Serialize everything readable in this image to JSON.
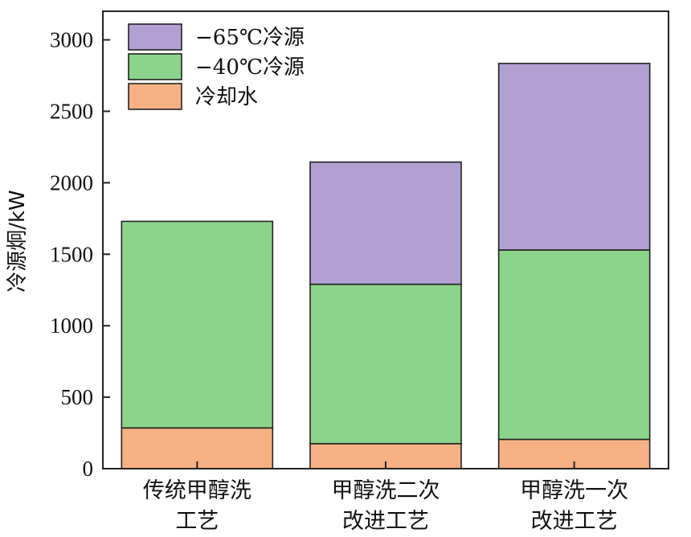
{
  "chart_data": {
    "type": "bar",
    "stacked": true,
    "categories": [
      [
        "传统甲醇洗",
        "工艺"
      ],
      [
        "甲醇洗二次",
        "改进工艺"
      ],
      [
        "甲醇洗一次",
        "改进工艺"
      ]
    ],
    "series": [
      {
        "name": "冷却水",
        "color": "#F5B183",
        "values": [
          285,
          175,
          205
        ]
      },
      {
        "name": "−40℃冷源",
        "color": "#8CD48C",
        "values": [
          1445,
          1115,
          1325
        ]
      },
      {
        "name": "−65℃冷源",
        "color": "#B3A0D2",
        "values": [
          0,
          855,
          1305
        ]
      }
    ],
    "legend_order": [
      2,
      1,
      0
    ],
    "legend_position": "top-left",
    "ylabel": "冷源炯/kW",
    "xlabel": "",
    "title": "",
    "ylim": [
      0,
      3200
    ],
    "yticks": [
      0,
      500,
      1000,
      1500,
      2000,
      2500,
      3000
    ],
    "grid": false
  }
}
